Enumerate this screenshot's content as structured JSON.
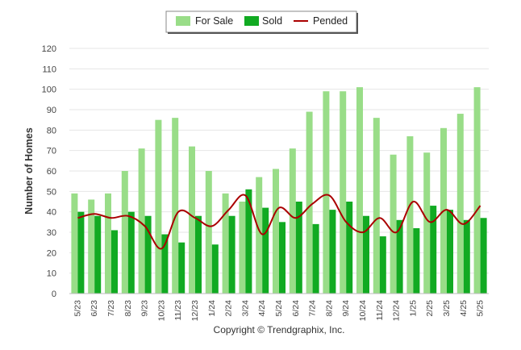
{
  "chart_data": {
    "type": "bar",
    "ylabel": "Number of Homes",
    "xlabel": "",
    "ylim": [
      0,
      120
    ],
    "y_ticks": [
      0,
      10,
      20,
      30,
      40,
      50,
      60,
      70,
      80,
      90,
      100,
      110,
      120
    ],
    "grid": "horizontal",
    "legend_position": "top-center",
    "categories": [
      "5/23",
      "6/23",
      "7/23",
      "8/23",
      "9/23",
      "10/23",
      "11/23",
      "12/23",
      "1/24",
      "2/24",
      "3/24",
      "4/24",
      "5/24",
      "6/24",
      "7/24",
      "8/24",
      "9/24",
      "10/24",
      "11/24",
      "12/24",
      "1/25",
      "2/25",
      "3/25",
      "4/25",
      "5/25"
    ],
    "series": [
      {
        "name": "For Sale",
        "type": "bar",
        "color": "#99dd88",
        "values": [
          49,
          46,
          49,
          60,
          71,
          85,
          86,
          72,
          60,
          49,
          45,
          57,
          61,
          71,
          89,
          99,
          99,
          101,
          86,
          68,
          77,
          69,
          81,
          88,
          101
        ]
      },
      {
        "name": "Sold",
        "type": "bar",
        "color": "#11aa22",
        "values": [
          40,
          38,
          31,
          40,
          38,
          29,
          25,
          38,
          24,
          38,
          51,
          42,
          35,
          45,
          34,
          41,
          45,
          38,
          28,
          36,
          32,
          43,
          41,
          36,
          37
        ]
      },
      {
        "name": "Pended",
        "type": "line",
        "color": "#aa0000",
        "values": [
          37,
          39,
          37,
          38,
          33,
          22,
          40,
          37,
          33,
          41,
          48,
          29,
          42,
          37,
          44,
          48,
          35,
          30,
          37,
          30,
          45,
          35,
          41,
          34,
          43
        ]
      }
    ],
    "footer": "Copyright © Trendgraphix, Inc."
  }
}
